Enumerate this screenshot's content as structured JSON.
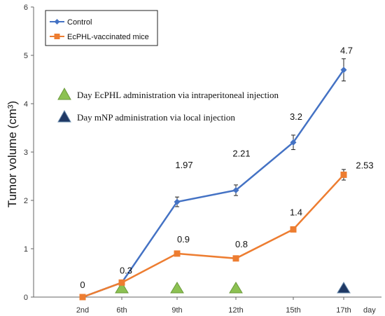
{
  "chart_data": {
    "type": "line",
    "categories": [
      "2nd",
      "6th",
      "9th",
      "12th",
      "15th",
      "17th"
    ],
    "x_unit": "day",
    "ylabel": "Tumor volume (cm³)",
    "ylim": [
      0,
      6
    ],
    "yticks": [
      0,
      1,
      2,
      3,
      4,
      5,
      6
    ],
    "grid": false,
    "legend_position": "top-left",
    "series": [
      {
        "name": "Control",
        "color": "#4472C4",
        "marker": "diamond",
        "values": [
          0,
          0.3,
          1.97,
          2.21,
          3.2,
          4.7
        ],
        "errors": [
          0,
          0.03,
          0.1,
          0.11,
          0.15,
          0.23
        ],
        "labels": [
          "",
          "",
          "1.97",
          "2.21",
          "3.2",
          "4.7"
        ]
      },
      {
        "name": "EcPHL-vaccinated mice",
        "color": "#ED7D31",
        "marker": "square",
        "values": [
          0,
          0.3,
          0.9,
          0.8,
          1.4,
          2.53
        ],
        "errors": [
          0,
          0.03,
          0.03,
          0.03,
          0.04,
          0.11
        ],
        "labels": [
          "0",
          "0.3",
          "0.9",
          "0.8",
          "1.4",
          "2.53"
        ]
      }
    ],
    "annotations": [
      {
        "symbol": "triangle",
        "color": "#8CC152",
        "text": "Day EcPHL administration via intraperitoneal injection",
        "days": [
          "6th",
          "9th",
          "12th"
        ]
      },
      {
        "symbol": "triangle",
        "color": "#1F3864",
        "text": "Day mNP administration via local injection",
        "days": [
          "17th"
        ]
      }
    ]
  }
}
